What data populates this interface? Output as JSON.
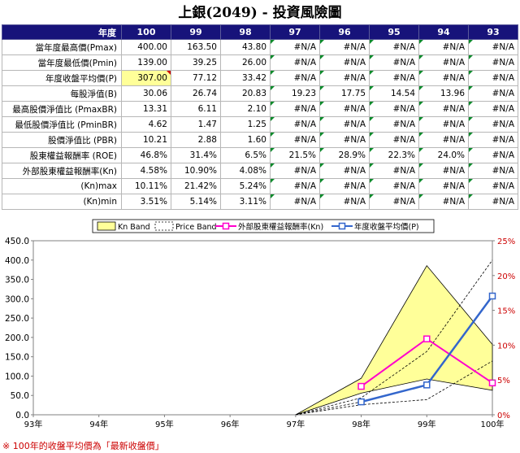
{
  "title": "上銀(2049) -  投資風險圖",
  "table": {
    "header_label": "年度",
    "years": [
      "100",
      "99",
      "98",
      "97",
      "96",
      "95",
      "94",
      "93"
    ],
    "rows": [
      {
        "label": "當年度最高價(Pmax)",
        "values": [
          "400.00",
          "163.50",
          "43.80",
          "#N/A",
          "#N/A",
          "#N/A",
          "#N/A",
          "#N/A"
        ]
      },
      {
        "label": "當年度最低價(Pmin)",
        "values": [
          "139.00",
          "39.25",
          "26.00",
          "#N/A",
          "#N/A",
          "#N/A",
          "#N/A",
          "#N/A"
        ]
      },
      {
        "label": "年度收盤平均價(P)",
        "values": [
          "307.00",
          "77.12",
          "33.42",
          "#N/A",
          "#N/A",
          "#N/A",
          "#N/A",
          "#N/A"
        ]
      },
      {
        "label": "每股淨值(B)",
        "values": [
          "30.06",
          "26.74",
          "20.83",
          "19.23",
          "17.75",
          "14.54",
          "13.96",
          "#N/A"
        ]
      },
      {
        "label": "最高股價淨值比 (PmaxBR)",
        "values": [
          "13.31",
          "6.11",
          "2.10",
          "#N/A",
          "#N/A",
          "#N/A",
          "#N/A",
          "#N/A"
        ]
      },
      {
        "label": "最低股價淨值比 (PminBR)",
        "values": [
          "4.62",
          "1.47",
          "1.25",
          "#N/A",
          "#N/A",
          "#N/A",
          "#N/A",
          "#N/A"
        ]
      },
      {
        "label": "股價淨值比 (PBR)",
        "values": [
          "10.21",
          "2.88",
          "1.60",
          "#N/A",
          "#N/A",
          "#N/A",
          "#N/A",
          "#N/A"
        ]
      },
      {
        "label": "股東權益報酬率 (ROE)",
        "values": [
          "46.8%",
          "31.4%",
          "6.5%",
          "21.5%",
          "28.9%",
          "22.3%",
          "24.0%",
          "#N/A"
        ]
      },
      {
        "label": "外部股東權益報酬率(Kn)",
        "values": [
          "4.58%",
          "10.90%",
          "4.08%",
          "#N/A",
          "#N/A",
          "#N/A",
          "#N/A",
          "#N/A"
        ]
      },
      {
        "label": "(Kn)max",
        "values": [
          "10.11%",
          "21.42%",
          "5.24%",
          "#N/A",
          "#N/A",
          "#N/A",
          "#N/A",
          "#N/A"
        ]
      },
      {
        "label": "(Kn)min",
        "values": [
          "3.51%",
          "5.14%",
          "3.11%",
          "#N/A",
          "#N/A",
          "#N/A",
          "#N/A",
          "#N/A"
        ]
      }
    ]
  },
  "chart_data": {
    "type": "line",
    "x": [
      "93年",
      "94年",
      "95年",
      "96年",
      "97年",
      "98年",
      "99年",
      "100年"
    ],
    "left_axis": {
      "range": [
        0,
        450
      ],
      "ticks": [
        "0.0",
        "50.0",
        "100.0",
        "150.0",
        "200.0",
        "250.0",
        "300.0",
        "350.0",
        "400.0",
        "450.0"
      ]
    },
    "right_axis": {
      "range": [
        0,
        25
      ],
      "ticks": [
        "0%",
        "5%",
        "10%",
        "15%",
        "20%",
        "25%"
      ]
    },
    "legend": [
      {
        "name": "Kn Band",
        "color": "#ffff99"
      },
      {
        "name": "Price Band",
        "color": "#000000"
      },
      {
        "name": "外部股東權益報酬率(Kn)",
        "color": "#ff00cc"
      },
      {
        "name": "年度收盤平均價(P)",
        "color": "#3366cc"
      }
    ],
    "kn_band": {
      "axis": "right",
      "upper": [
        null,
        null,
        null,
        null,
        0,
        5.24,
        21.42,
        10.11
      ],
      "lower": [
        null,
        null,
        null,
        null,
        0,
        3.11,
        5.14,
        3.51
      ]
    },
    "price_band": {
      "axis": "left",
      "lines": [
        [
          null,
          null,
          null,
          null,
          0,
          43.8,
          163.5,
          400.0
        ],
        [
          null,
          null,
          null,
          null,
          0,
          33.42,
          77.12,
          307.0
        ],
        [
          null,
          null,
          null,
          null,
          0,
          26.0,
          39.25,
          139.0
        ]
      ]
    },
    "kn_series": {
      "axis": "right",
      "values": [
        null,
        null,
        null,
        null,
        null,
        4.08,
        10.9,
        4.58
      ]
    },
    "p_series": {
      "axis": "left",
      "values": [
        null,
        null,
        null,
        null,
        null,
        33.42,
        77.12,
        307.0
      ]
    },
    "grid": false,
    "legend_position": "top"
  },
  "footnote": "※ 100年的收盤平均價為「最新收盤價」"
}
